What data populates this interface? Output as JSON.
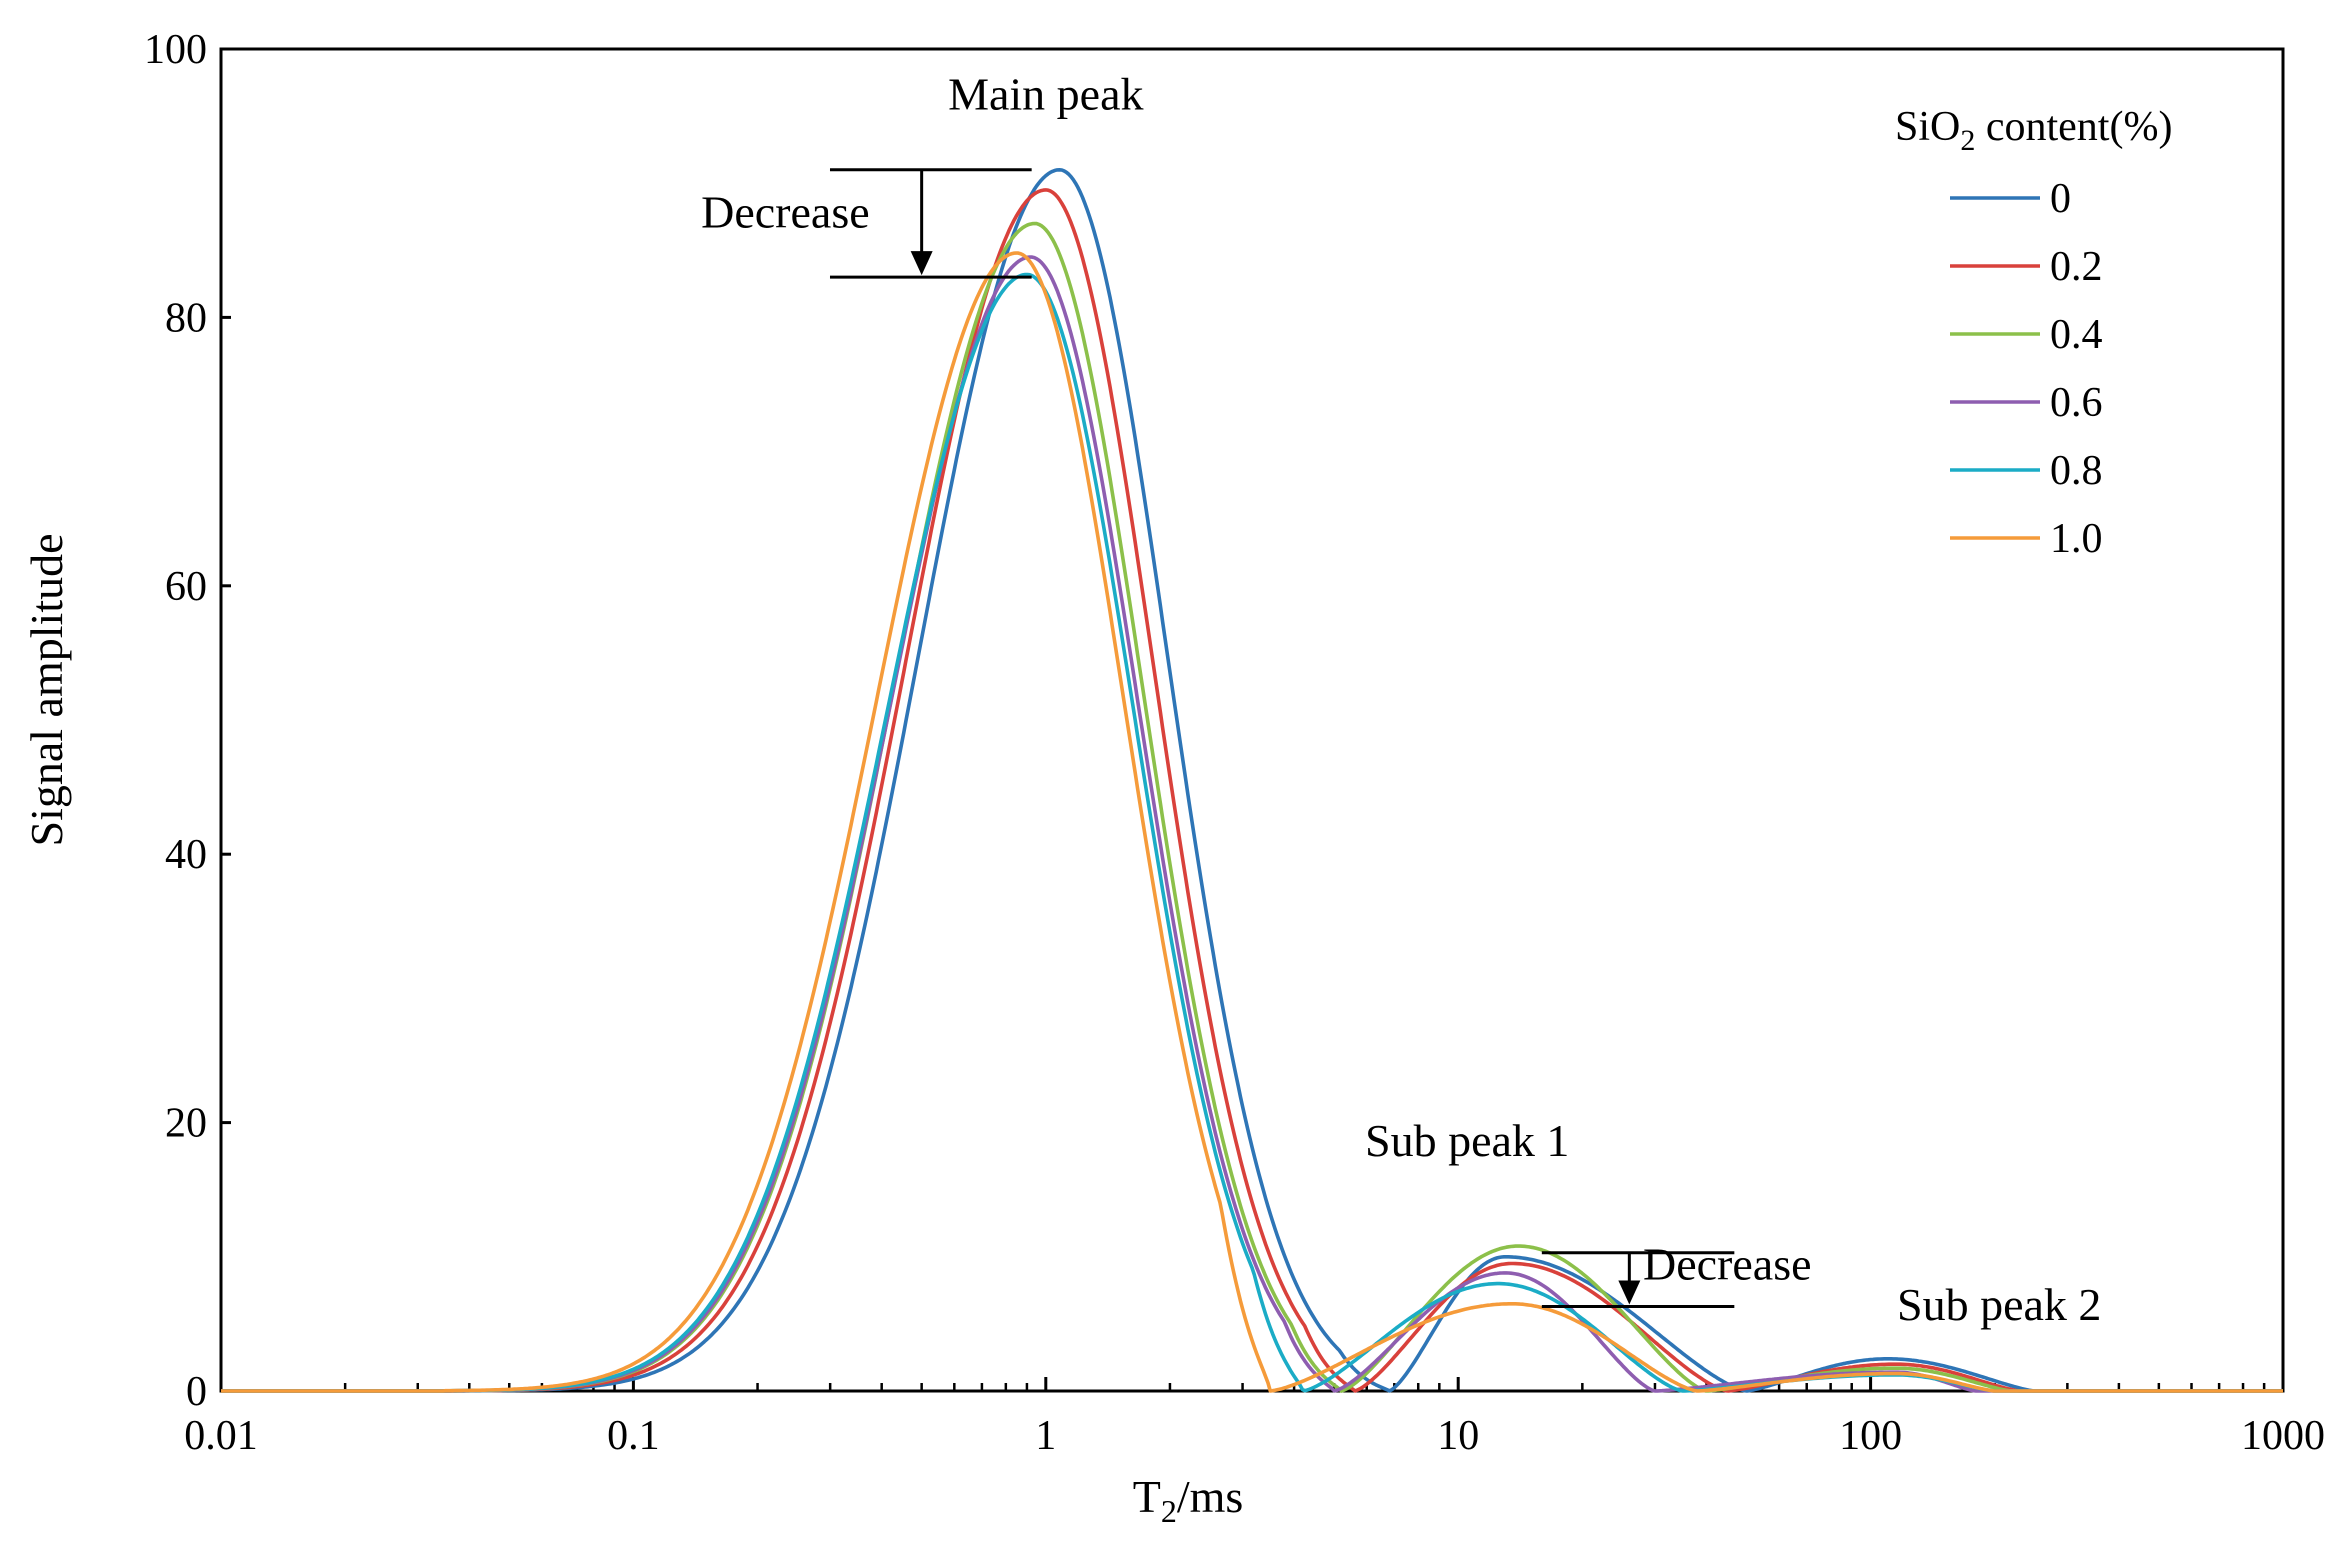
{
  "chart_data": {
    "type": "line",
    "title": "",
    "xlabel": "T2/ms",
    "xlabel_main": "T",
    "xlabel_sub": "2",
    "xlabel_tail": "/ms",
    "ylabel": "Signal amplitude",
    "xscale": "log",
    "xlim": [
      0.01,
      1000
    ],
    "ylim": [
      0,
      100
    ],
    "x_ticks": [
      0.01,
      0.1,
      1,
      10,
      100,
      1000
    ],
    "x_tick_labels": [
      "0.01",
      "0.1",
      "1",
      "10",
      "100",
      "1000"
    ],
    "y_ticks": [
      0,
      20,
      40,
      60,
      80,
      100
    ],
    "y_tick_labels": [
      "0",
      "20",
      "40",
      "60",
      "80",
      "100"
    ],
    "legend": {
      "title": "SiO2 content(%)",
      "title_main": "SiO",
      "title_sub": "2",
      "title_tail": " content(%)",
      "position": "top-right"
    },
    "series": [
      {
        "name": "0",
        "color": "#2E75B6",
        "main_peak": {
          "x": 1.08,
          "y": 91.0
        },
        "sub_peak1": {
          "x": 13.0,
          "y": 10.0
        },
        "sub_peak2": {
          "x": 110,
          "y": 2.4
        },
        "trough1_x": 6.8,
        "trough2_x": 50,
        "end_x": 250
      },
      {
        "name": "0.2",
        "color": "#D9413B",
        "main_peak": {
          "x": 1.0,
          "y": 89.5
        },
        "sub_peak1": {
          "x": 13.5,
          "y": 9.5
        },
        "sub_peak2": {
          "x": 115,
          "y": 2.0
        },
        "trough1_x": 5.6,
        "trough2_x": 45,
        "end_x": 230
      },
      {
        "name": "0.4",
        "color": "#8CC04A",
        "main_peak": {
          "x": 0.94,
          "y": 87.0
        },
        "sub_peak1": {
          "x": 14.0,
          "y": 10.8
        },
        "sub_peak2": {
          "x": 115,
          "y": 1.7
        },
        "trough1_x": 5.2,
        "trough2_x": 40,
        "end_x": 220
      },
      {
        "name": "0.6",
        "color": "#8E5EB0",
        "main_peak": {
          "x": 0.92,
          "y": 84.5
        },
        "sub_peak1": {
          "x": 13.0,
          "y": 8.8
        },
        "sub_peak2": {
          "x": 115,
          "y": 1.4
        },
        "trough1_x": 5.0,
        "trough2_x": 30,
        "end_x": 180
      },
      {
        "name": "0.8",
        "color": "#1BACC6",
        "main_peak": {
          "x": 0.9,
          "y": 83.2
        },
        "sub_peak1": {
          "x": 12.5,
          "y": 8.0
        },
        "sub_peak2": {
          "x": 115,
          "y": 1.2
        },
        "trough1_x": 4.2,
        "trough2_x": 35,
        "end_x": 200
      },
      {
        "name": "1.0",
        "color": "#F59B3A",
        "main_peak": {
          "x": 0.85,
          "y": 84.8
        },
        "sub_peak1": {
          "x": 13.5,
          "y": 6.5
        },
        "sub_peak2": {
          "x": 115,
          "y": 1.3
        },
        "trough1_x": 3.5,
        "trough2_x": 38,
        "end_x": 200
      }
    ],
    "annotations": [
      {
        "text": "Main peak",
        "x": 1.0,
        "y": 95.5
      },
      {
        "text": "Decrease",
        "x": 0.25,
        "y": 86.7,
        "arrow_x": 0.5,
        "from_y": 91.0,
        "to_y": 83.0
      },
      {
        "text": "Sub peak 1",
        "x": 11.5,
        "y": 17.5
      },
      {
        "text": "Decrease",
        "x": 31.0,
        "y": 8.3,
        "arrow_x": 26,
        "from_y": 10.3,
        "to_y": 6.3
      },
      {
        "text": "Sub peak 2",
        "x": 190,
        "y": 5.3
      }
    ]
  }
}
